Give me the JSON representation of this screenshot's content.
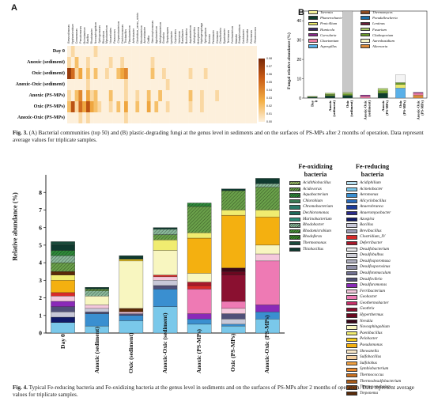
{
  "fig3": {
    "panel_a_letter": "A",
    "panel_b_letter": "B",
    "heatmap_rows": [
      "Day 0",
      "Anoxic (sediment)",
      "Oxic (sediment)",
      "Anoxic-Oxic (sediment)",
      "Anoxic (PS-MPs)",
      "Oxic (PS-MPs)",
      "Anoxic-Oxic (PS-MPs)"
    ],
    "heatmap_cols": [
      "Brevundimonas",
      "Hyphomicrobium",
      "Comamonas",
      "Pseudomonas",
      "Ochrobactrum",
      "Bacillus",
      "Rhodobacter",
      "Novosphingobium",
      "Sphingomonas",
      "Rhizobium",
      "Mycobacterium",
      "Nocardioides",
      "Paracoccus",
      "Chryseobacterium",
      "Dechloromonas",
      "Thiobacillus",
      "Flavobacterium",
      "Arthrobacter",
      "Clostridium_sensu_stricto",
      "Microbacterium",
      "Acinetobacter",
      "Delftia",
      "Stenotrophomonas",
      "Agrobacterium",
      "Methylobacterium",
      "Gordonia",
      "Streptomyces",
      "Lysobacter",
      "Cupriavidus",
      "Variovorax",
      "Ramlibacter",
      "Burkholderia",
      "Aquabacterium",
      "Methylophilus",
      "Methylotenera",
      "Hydrogenophaga",
      "Sphingobium",
      "Devosia",
      "Pedobacter",
      "Geobacter",
      "Desulfovibrio",
      "Dyadobacter",
      "Terrimonas",
      "Ferribacterium",
      "Massilia",
      "Bradyrhizobium",
      "Caulobacter",
      "Shewanella",
      "Pelomonas",
      "Rhodococcus"
    ],
    "colorbar_ticks": [
      "0.08",
      "0.07",
      "0.06",
      "0.05",
      "0.04",
      "0.03",
      "0.02",
      "0.01",
      "0.00"
    ],
    "heatmap_values": [
      [
        0.0,
        0.01,
        0.0,
        0.0,
        0.0,
        0.0,
        0.0,
        0.01,
        0.0,
        0.0,
        0.0,
        0.0,
        0.0,
        0.0,
        0.0,
        0.0,
        0.0,
        0.0,
        0.0,
        0.0,
        0.0,
        0.0,
        0.0,
        0.0,
        0.0,
        0.0,
        0.0,
        0.0,
        0.0,
        0.0,
        0.0,
        0.0,
        0.0,
        0.0,
        0.0,
        0.0,
        0.0,
        0.0,
        0.0,
        0.0,
        0.0,
        0.0,
        0.0,
        0.0,
        0.0,
        0.0,
        0.0,
        0.0,
        0.0,
        0.0
      ],
      [
        0.01,
        0.0,
        0.02,
        0.0,
        0.0,
        0.01,
        0.0,
        0.0,
        0.0,
        0.0,
        0.0,
        0.01,
        0.0,
        0.0,
        0.01,
        0.0,
        0.0,
        0.0,
        0.0,
        0.0,
        0.0,
        0.0,
        0.01,
        0.0,
        0.0,
        0.0,
        0.0,
        0.0,
        0.0,
        0.0,
        0.0,
        0.0,
        0.0,
        0.0,
        0.0,
        0.0,
        0.0,
        0.0,
        0.0,
        0.0,
        0.0,
        0.0,
        0.0,
        0.0,
        0.0,
        0.0,
        0.0,
        0.0,
        0.0,
        0.0
      ],
      [
        0.07,
        0.05,
        0.01,
        0.03,
        0.0,
        0.02,
        0.0,
        0.02,
        0.0,
        0.0,
        0.01,
        0.0,
        0.0,
        0.02,
        0.03,
        0.04,
        0.0,
        0.0,
        0.0,
        0.0,
        0.0,
        0.0,
        0.02,
        0.0,
        0.0,
        0.01,
        0.0,
        0.0,
        0.0,
        0.0,
        0.0,
        0.0,
        0.01,
        0.0,
        0.0,
        0.0,
        0.01,
        0.0,
        0.0,
        0.0,
        0.0,
        0.0,
        0.0,
        0.0,
        0.0,
        0.0,
        0.0,
        0.0,
        0.0,
        0.0
      ],
      [
        0.0,
        0.0,
        0.0,
        0.0,
        0.0,
        0.01,
        0.0,
        0.0,
        0.0,
        0.0,
        0.0,
        0.0,
        0.0,
        0.0,
        0.0,
        0.01,
        0.0,
        0.0,
        0.0,
        0.0,
        0.0,
        0.0,
        0.0,
        0.0,
        0.0,
        0.0,
        0.01,
        0.0,
        0.0,
        0.0,
        0.0,
        0.0,
        0.0,
        0.0,
        0.0,
        0.0,
        0.0,
        0.0,
        0.0,
        0.0,
        0.0,
        0.0,
        0.0,
        0.0,
        0.0,
        0.0,
        0.0,
        0.0,
        0.0,
        0.0
      ],
      [
        0.01,
        0.0,
        0.02,
        0.04,
        0.0,
        0.03,
        0.01,
        0.02,
        0.0,
        0.0,
        0.0,
        0.02,
        0.0,
        0.0,
        0.0,
        0.01,
        0.0,
        0.0,
        0.01,
        0.0,
        0.0,
        0.02,
        0.0,
        0.0,
        0.02,
        0.0,
        0.0,
        0.0,
        0.0,
        0.0,
        0.0,
        0.0,
        0.02,
        0.0,
        0.0,
        0.01,
        0.0,
        0.0,
        0.0,
        0.01,
        0.0,
        0.0,
        0.0,
        0.0,
        0.0,
        0.0,
        0.0,
        0.0,
        0.0,
        0.0
      ],
      [
        0.02,
        0.06,
        0.01,
        0.05,
        0.03,
        0.06,
        0.03,
        0.02,
        0.01,
        0.0,
        0.0,
        0.01,
        0.0,
        0.02,
        0.0,
        0.03,
        0.0,
        0.0,
        0.02,
        0.0,
        0.0,
        0.03,
        0.0,
        0.02,
        0.0,
        0.0,
        0.01,
        0.0,
        0.0,
        0.0,
        0.0,
        0.0,
        0.01,
        0.0,
        0.0,
        0.01,
        0.0,
        0.0,
        0.0,
        0.0,
        0.0,
        0.0,
        0.0,
        0.0,
        0.0,
        0.0,
        0.0,
        0.0,
        0.0,
        0.0
      ],
      [
        0.0,
        0.0,
        0.0,
        0.01,
        0.0,
        0.01,
        0.0,
        0.0,
        0.0,
        0.0,
        0.0,
        0.0,
        0.0,
        0.0,
        0.0,
        0.01,
        0.0,
        0.0,
        0.0,
        0.0,
        0.0,
        0.0,
        0.0,
        0.0,
        0.0,
        0.0,
        0.0,
        0.0,
        0.0,
        0.0,
        0.0,
        0.0,
        0.0,
        0.0,
        0.0,
        0.0,
        0.0,
        0.0,
        0.0,
        0.0,
        0.0,
        0.0,
        0.0,
        0.0,
        0.0,
        0.0,
        0.0,
        0.0,
        0.0,
        0.0
      ]
    ],
    "panel_b_ylabel": "Fungal relative abundance (%)",
    "panel_b_yticks": [
      "0",
      "10",
      "20",
      "30",
      "40"
    ],
    "panel_b_categories": [
      "Day 0",
      "Anoxic (sediment)",
      "Oxic (sediment)",
      "Anoxic-Oxic (sediment)",
      "Anoxic (PS-MPs)",
      "Oxic (PS-MPs)",
      "Anoxic-Oxic (PS-MPs)"
    ],
    "panel_b_legend": [
      {
        "name": "Torrenia",
        "color": "#f2ef9a"
      },
      {
        "name": "Thermomyces",
        "color": "#8b4a1f"
      },
      {
        "name": "Phanerochaete",
        "color": "#0e3d2e"
      },
      {
        "name": "Pseudallescheria",
        "color": "#1b6fa8"
      },
      {
        "name": "Penicillium",
        "color": "#e8e86a"
      },
      {
        "name": "Lentinus",
        "color": "#6b1f3a"
      },
      {
        "name": "Humicola",
        "color": "#3a2a66"
      },
      {
        "name": "Fusarium",
        "color": "#a8c96a"
      },
      {
        "name": "Curvularia",
        "color": "#8a2a8a"
      },
      {
        "name": "Cladosporium",
        "color": "#6a9a2a"
      },
      {
        "name": "Chaetomium",
        "color": "#e87aa0"
      },
      {
        "name": "Aureobasidium",
        "color": "#f4f4c8"
      },
      {
        "name": "Aspergillus",
        "color": "#5ab0e8"
      },
      {
        "name": "Alternaria",
        "color": "#d98a3a"
      }
    ],
    "caption_label": "Fig. 3.",
    "caption_text": " (A) Bacterial communities (top 50) and (B) plastic-degrading fungi at the genus level in sediments and on the surfaces of PS-MPs after 2 months of operation. Data represent average values for triplicate samples."
  },
  "fig4": {
    "ylabel": "Relative abundance (%)",
    "yticks": [
      "0",
      "1",
      "2",
      "3",
      "4",
      "5",
      "6",
      "7",
      "8"
    ],
    "categories": [
      "Day 0",
      "Anoxic (sediment)",
      "Oxic (sediment)",
      "Anoxic-Oxic (sediment)",
      "Anoxic (PS-MPs)",
      "Oxic (PS-MPs)",
      "Anoxic-Oxic (PS-MPs)"
    ],
    "fe_oxidizing_title": "Fe-oxidizing bacteria",
    "fe_reducing_title": "Fe-reducing bacteria",
    "fe_oxidizing": [
      {
        "name": "Acidithiobacillus",
        "color": "#9dbf6b",
        "hatch": true
      },
      {
        "name": "Acidovorax",
        "color": "#6aa14a",
        "hatch": true
      },
      {
        "name": "Aquabacterium",
        "color": "#2f8a3a",
        "hatch": true
      },
      {
        "name": "Chlorobium",
        "color": "#3a7a55"
      },
      {
        "name": "Chromobacterium",
        "color": "#2a7a6a"
      },
      {
        "name": "Dechloromonas",
        "color": "#1f6a5a"
      },
      {
        "name": "Marinobacterium",
        "color": "#2a8f7a"
      },
      {
        "name": "Rhodobacter",
        "color": "#8ab89a",
        "hatch": true
      },
      {
        "name": "Rhodomicrobium",
        "color": "#4a9a3a",
        "hatch": true
      },
      {
        "name": "Rhodoferax",
        "color": "#3a8a2a",
        "hatch": true
      },
      {
        "name": "Thermomonas",
        "color": "#1a4a3a"
      },
      {
        "name": "Thiobacillus",
        "color": "#0f3a2f"
      }
    ],
    "fe_reducing": [
      {
        "name": "Acidiphilium",
        "color": "#b8dff0"
      },
      {
        "name": "Acinetobacter",
        "color": "#7ac8ea"
      },
      {
        "name": "Aeromonas",
        "color": "#3a8fd0"
      },
      {
        "name": "Alicyclobacillus",
        "color": "#2a6ab8"
      },
      {
        "name": "Anaerobranca",
        "color": "#1a3a9a"
      },
      {
        "name": "Anaeromyxobacter",
        "color": "#2a2a8a"
      },
      {
        "name": "Azospira",
        "color": "#101a6a"
      },
      {
        "name": "Bacillus",
        "color": "#c8c8d8"
      },
      {
        "name": "Brevibacillus",
        "color": "#a0a0b8"
      },
      {
        "name": "Clostridium_IV",
        "color": "#d82a2a"
      },
      {
        "name": "Deferribacter",
        "color": "#a8182a"
      },
      {
        "name": "Desulfobacterium",
        "color": "#e8e8ea"
      },
      {
        "name": "Desulfobulbus",
        "color": "#d0d0d8"
      },
      {
        "name": "Desulfosporomusa",
        "color": "#b0b0c0"
      },
      {
        "name": "Desulfosporosinus",
        "color": "#9090a8"
      },
      {
        "name": "Desulfotomaculum",
        "color": "#707090"
      },
      {
        "name": "Desulfovibrio",
        "color": "#505078"
      },
      {
        "name": "Desulfuromonas",
        "color": "#8a2ab8"
      },
      {
        "name": "Ferribacterium",
        "color": "#f4c8dc"
      },
      {
        "name": "Geobacter",
        "color": "#ee7ab4"
      },
      {
        "name": "Geothermobacter",
        "color": "#c8306a"
      },
      {
        "name": "Geothrix",
        "color": "#8a1030"
      },
      {
        "name": "Hyperthermus",
        "color": "#6a0820"
      },
      {
        "name": "Nevskia",
        "color": "#3a0818"
      },
      {
        "name": "Novosphingobium",
        "color": "#f8f6c0"
      },
      {
        "name": "Paenibacillus",
        "color": "#f0ec70"
      },
      {
        "name": "Pelobacter",
        "color": "#f0c820"
      },
      {
        "name": "Pseudomonas",
        "color": "#f4b010"
      },
      {
        "name": "Shewanella",
        "color": "#fae8c8"
      },
      {
        "name": "Sulfobacillus",
        "color": "#f4d0a0"
      },
      {
        "name": "Sulfolobus",
        "color": "#f0a040"
      },
      {
        "name": "Symbiobacterium",
        "color": "#e88a30"
      },
      {
        "name": "Thermococcus",
        "color": "#c87020"
      },
      {
        "name": "Thermodesulfobacterium",
        "color": "#a85a18"
      },
      {
        "name": "Thermovenabulum",
        "color": "#8a4410"
      },
      {
        "name": "Treponema",
        "color": "#5a2a08"
      }
    ],
    "caption_label": "Fig. 4.",
    "caption_text": " Typical Fe-reducing bacteria and Fe-oxidizing bacteria at the genus level in sediments and on the surfaces of PS-MPs after 2 months of operation. Data represent average values for triplicate samples."
  },
  "chart_data": [
    {
      "type": "heatmap",
      "rows": [
        "Day 0",
        "Anoxic (sediment)",
        "Oxic (sediment)",
        "Anoxic-Oxic (sediment)",
        "Anoxic (PS-MPs)",
        "Oxic (PS-MPs)",
        "Anoxic-Oxic (PS-MPs)"
      ],
      "value_range": [
        0,
        0.08
      ]
    },
    {
      "type": "bar",
      "stacked": true,
      "categories": [
        "Day 0",
        "Anoxic (sediment)",
        "Oxic (sediment)",
        "Anoxic-Oxic (sediment)",
        "Anoxic (PS-MPs)",
        "Oxic (PS-MPs)",
        "Anoxic-Oxic (PS-MPs)"
      ],
      "totals": [
        1,
        3,
        45,
        2,
        5,
        12,
        3
      ],
      "ylabel": "Fungal relative abundance (%)",
      "ylim": [
        0,
        45
      ]
    },
    {
      "type": "bar",
      "stacked": true,
      "categories": [
        "Day 0",
        "Anoxic (sediment)",
        "Oxic (sediment)",
        "Anoxic-Oxic (sediment)",
        "Anoxic (PS-MPs)",
        "Oxic (PS-MPs)",
        "Anoxic-Oxic (PS-MPs)"
      ],
      "totals": [
        5.4,
        2.6,
        4.4,
        6.0,
        7.4,
        7.6,
        8.8
      ],
      "ylabel": "Relative abundance (%)",
      "ylim": [
        0,
        9
      ]
    }
  ]
}
